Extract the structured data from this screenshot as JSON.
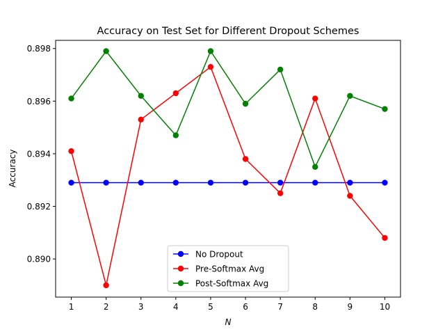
{
  "chart_data": {
    "type": "line",
    "title": "Accuracy on Test Set for Different Dropout Schemes",
    "xlabel": "N",
    "ylabel": "Accuracy",
    "x": [
      1,
      2,
      3,
      4,
      5,
      6,
      7,
      8,
      9,
      10
    ],
    "xlim": [
      0.55,
      10.45
    ],
    "ylim": [
      0.88855,
      0.89831
    ],
    "yticks": [
      0.89,
      0.892,
      0.894,
      0.896,
      0.898
    ],
    "ytick_labels": [
      "0.890",
      "0.892",
      "0.894",
      "0.896",
      "0.898"
    ],
    "xtick_labels": [
      "1",
      "2",
      "3",
      "4",
      "5",
      "6",
      "7",
      "8",
      "9",
      "10"
    ],
    "grid": false,
    "legend_position": "lower center",
    "series": [
      {
        "name": "No Dropout",
        "color": "#0000ff",
        "values": [
          0.8929,
          0.8929,
          0.8929,
          0.8929,
          0.8929,
          0.8929,
          0.8929,
          0.8929,
          0.8929,
          0.8929
        ]
      },
      {
        "name": "Pre-Softmax Avg",
        "color": "#ff0000",
        "values": [
          0.8941,
          0.889,
          0.8953,
          0.8963,
          0.8973,
          0.8938,
          0.8925,
          0.8961,
          0.8924,
          0.8908
        ]
      },
      {
        "name": "Post-Softmax Avg",
        "color": "#008000",
        "values": [
          0.8961,
          0.8979,
          0.8962,
          0.8947,
          0.8979,
          0.8959,
          0.8972,
          0.8935,
          0.8962,
          0.8957
        ]
      }
    ]
  }
}
